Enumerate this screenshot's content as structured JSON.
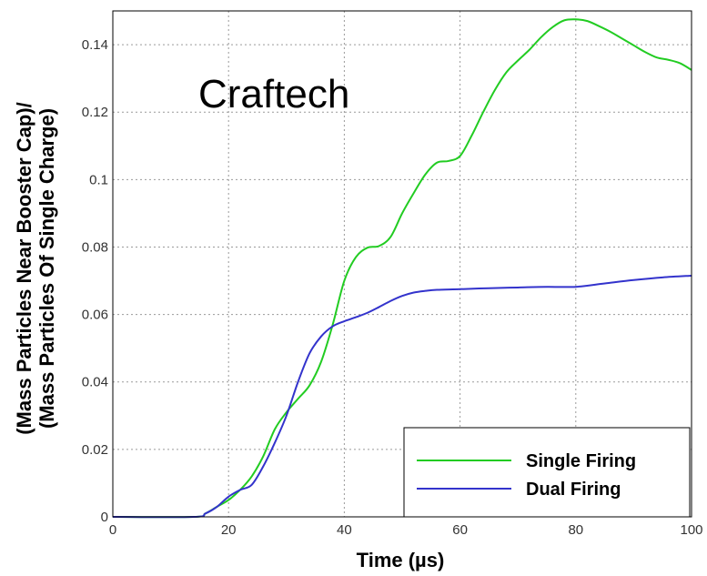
{
  "chart_data": {
    "type": "line",
    "xlabel": "Time (µs)",
    "ylabel_line1": "(Mass Particles Near Booster Cap)/",
    "ylabel_line2": "(Mass Particles Of Single Charge)",
    "annotation": "Craftech",
    "xlim": [
      0,
      100
    ],
    "ylim": [
      0,
      0.15
    ],
    "xticks": [
      0,
      20,
      40,
      60,
      80,
      100
    ],
    "xtick_labels": [
      "0",
      "20",
      "40",
      "60",
      "80",
      "100"
    ],
    "yticks": [
      0,
      0.02,
      0.04,
      0.06,
      0.08,
      0.1,
      0.12,
      0.14
    ],
    "ytick_labels": [
      "0",
      "0.02",
      "0.04",
      "0.06",
      "0.08",
      "0.1",
      "0.12",
      "0.14"
    ],
    "grid": true,
    "legend_position": "bottom-right",
    "series": [
      {
        "name": "Single Firing",
        "color": "#22cc22",
        "x": [
          0,
          14,
          16,
          18,
          20,
          22,
          24,
          26,
          28,
          30,
          32,
          34,
          36,
          38,
          40,
          42,
          44,
          46,
          48,
          50,
          52,
          54,
          56,
          58,
          60,
          62,
          64,
          66,
          68,
          70,
          72,
          74,
          76,
          78,
          80,
          82,
          84,
          86,
          88,
          90,
          92,
          94,
          96,
          98,
          100
        ],
        "y": [
          0,
          0,
          0.001,
          0.003,
          0.005,
          0.008,
          0.012,
          0.018,
          0.026,
          0.031,
          0.035,
          0.039,
          0.046,
          0.057,
          0.07,
          0.077,
          0.0798,
          0.0803,
          0.083,
          0.09,
          0.096,
          0.1015,
          0.105,
          0.1055,
          0.107,
          0.113,
          0.12,
          0.1265,
          0.1318,
          0.1353,
          0.1385,
          0.1422,
          0.1452,
          0.1472,
          0.1475,
          0.147,
          0.1455,
          0.1438,
          0.1418,
          0.1398,
          0.1378,
          0.1362,
          0.1355,
          0.1345,
          0.1325
        ]
      },
      {
        "name": "Dual Firing",
        "color": "#3333cc",
        "x": [
          0,
          14,
          16,
          18,
          20,
          22,
          24,
          26,
          28,
          30,
          32,
          34,
          36,
          38,
          40,
          42,
          44,
          46,
          48,
          50,
          52,
          54,
          56,
          60,
          65,
          70,
          75,
          80,
          85,
          90,
          95,
          100
        ],
        "y": [
          0,
          0,
          0.001,
          0.003,
          0.006,
          0.008,
          0.0095,
          0.015,
          0.022,
          0.03,
          0.04,
          0.0485,
          0.0535,
          0.0565,
          0.058,
          0.0592,
          0.0605,
          0.0622,
          0.064,
          0.0655,
          0.0665,
          0.067,
          0.0673,
          0.0675,
          0.0678,
          0.068,
          0.0682,
          0.0682,
          0.0692,
          0.0702,
          0.071,
          0.0715
        ]
      }
    ]
  }
}
